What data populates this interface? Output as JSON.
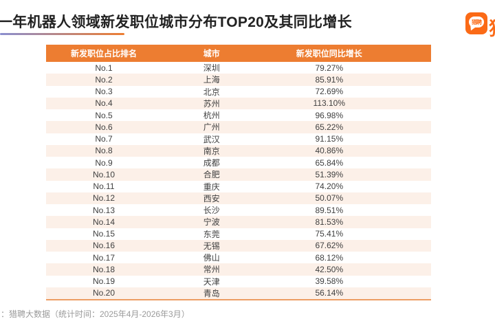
{
  "page": {
    "title": "一年机器人领域新发职位城市分布TOP20及其同比增长",
    "source_note": "：猎聘大数据（统计时间：2025年4月-2026年3月）"
  },
  "logo": {
    "bubble_text": "猎聘",
    "partial_text": "猎",
    "color": "#fb6a16"
  },
  "colors": {
    "header_bg": "#ed7d31",
    "alt_row_bg": "#fcf0e8",
    "accent_orange": "#fb6a16",
    "table_bottom_border": "#ed9d63",
    "underline_gradient_left": "#8a8fd0",
    "underline_gradient_right": "#ed7d31",
    "footer_text": "#9a9a9a"
  },
  "table": {
    "columns": [
      "新发职位占比排名",
      "城市",
      "新发职位同比增长"
    ],
    "rows": [
      {
        "rank": "No.1",
        "city": "深圳",
        "growth": "79.27%"
      },
      {
        "rank": "No.2",
        "city": "上海",
        "growth": "85.91%"
      },
      {
        "rank": "No.3",
        "city": "北京",
        "growth": "72.69%"
      },
      {
        "rank": "No.4",
        "city": "苏州",
        "growth": "113.10%"
      },
      {
        "rank": "No.5",
        "city": "杭州",
        "growth": "96.98%"
      },
      {
        "rank": "No.6",
        "city": "广州",
        "growth": "65.22%"
      },
      {
        "rank": "No.7",
        "city": "武汉",
        "growth": "91.15%"
      },
      {
        "rank": "No.8",
        "city": "南京",
        "growth": "40.86%"
      },
      {
        "rank": "No.9",
        "city": "成都",
        "growth": "65.84%"
      },
      {
        "rank": "No.10",
        "city": "合肥",
        "growth": "51.39%"
      },
      {
        "rank": "No.11",
        "city": "重庆",
        "growth": "74.20%"
      },
      {
        "rank": "No.12",
        "city": "西安",
        "growth": "50.07%"
      },
      {
        "rank": "No.13",
        "city": "长沙",
        "growth": "89.51%"
      },
      {
        "rank": "No.14",
        "city": "宁波",
        "growth": "81.53%"
      },
      {
        "rank": "No.15",
        "city": "东莞",
        "growth": "75.41%"
      },
      {
        "rank": "No.16",
        "city": "无锡",
        "growth": "67.62%"
      },
      {
        "rank": "No.17",
        "city": "佛山",
        "growth": "68.12%"
      },
      {
        "rank": "No.18",
        "city": "常州",
        "growth": "42.50%"
      },
      {
        "rank": "No.19",
        "city": "天津",
        "growth": "39.58%"
      },
      {
        "rank": "No.20",
        "city": "青岛",
        "growth": "56.14%"
      }
    ]
  },
  "chart_data": {
    "type": "table",
    "title": "一年机器人领域新发职位城市分布TOP20及其同比增长",
    "columns": [
      "新发职位占比排名",
      "城市",
      "新发职位同比增长"
    ],
    "rows": [
      [
        "No.1",
        "深圳",
        "79.27%"
      ],
      [
        "No.2",
        "上海",
        "85.91%"
      ],
      [
        "No.3",
        "北京",
        "72.69%"
      ],
      [
        "No.4",
        "苏州",
        "113.10%"
      ],
      [
        "No.5",
        "杭州",
        "96.98%"
      ],
      [
        "No.6",
        "广州",
        "65.22%"
      ],
      [
        "No.7",
        "武汉",
        "91.15%"
      ],
      [
        "No.8",
        "南京",
        "40.86%"
      ],
      [
        "No.9",
        "成都",
        "65.84%"
      ],
      [
        "No.10",
        "合肥",
        "51.39%"
      ],
      [
        "No.11",
        "重庆",
        "74.20%"
      ],
      [
        "No.12",
        "西安",
        "50.07%"
      ],
      [
        "No.13",
        "长沙",
        "89.51%"
      ],
      [
        "No.14",
        "宁波",
        "81.53%"
      ],
      [
        "No.15",
        "东莞",
        "75.41%"
      ],
      [
        "No.16",
        "无锡",
        "67.62%"
      ],
      [
        "No.17",
        "佛山",
        "68.12%"
      ],
      [
        "No.18",
        "常州",
        "42.50%"
      ],
      [
        "No.19",
        "天津",
        "39.58%"
      ],
      [
        "No.20",
        "青岛",
        "56.14%"
      ]
    ],
    "growth_values_percent": [
      79.27,
      85.91,
      72.69,
      113.1,
      96.98,
      65.22,
      91.15,
      40.86,
      65.84,
      51.39,
      74.2,
      50.07,
      89.51,
      81.53,
      75.41,
      67.62,
      68.12,
      42.5,
      39.58,
      56.14
    ],
    "source": "猎聘大数据（统计时间：2025年4月-2026年3月）"
  }
}
